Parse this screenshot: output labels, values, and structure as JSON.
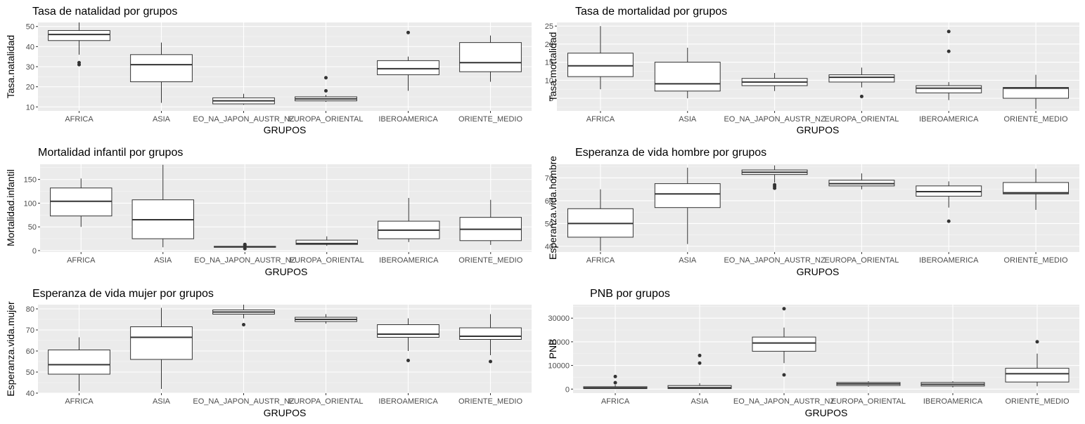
{
  "chart_data": [
    {
      "type": "boxplot",
      "title": "Tasa de natalidad por grupos",
      "xlabel": "GRUPOS",
      "ylabel": "Tasa.natalidad",
      "categories": [
        "AFRICA",
        "ASIA",
        "EO_NA_JAPON_AUSTR_NZ",
        "EUROPA_ORIENTAL",
        "IBEROAMERICA",
        "ORIENTE_MEDIO"
      ],
      "ylim": [
        8,
        52
      ],
      "yticks": [
        10,
        20,
        30,
        40,
        50
      ],
      "boxes": [
        {
          "whisker_low": 36,
          "q1": 43,
          "median": 46,
          "q3": 48,
          "whisker_high": 52,
          "outliers": [
            31,
            32
          ]
        },
        {
          "whisker_low": 12,
          "q1": 22.5,
          "median": 31,
          "q3": 36,
          "whisker_high": 42,
          "outliers": []
        },
        {
          "whisker_low": 11,
          "q1": 11.5,
          "median": 13,
          "q3": 14.5,
          "whisker_high": 16.5,
          "outliers": []
        },
        {
          "whisker_low": 12.5,
          "q1": 13,
          "median": 14,
          "q3": 15,
          "whisker_high": 16,
          "outliers": [
            18,
            24.5
          ]
        },
        {
          "whisker_low": 18,
          "q1": 26,
          "median": 29,
          "q3": 33,
          "whisker_high": 35,
          "outliers": [
            47
          ]
        },
        {
          "whisker_low": 22.5,
          "q1": 27.5,
          "median": 32,
          "q3": 42,
          "whisker_high": 45.5,
          "outliers": []
        }
      ]
    },
    {
      "type": "boxplot",
      "title": "Tasa de mortalidad por grupos",
      "xlabel": "GRUPOS",
      "ylabel": "Tasa.mortalidad",
      "categories": [
        "AFRICA",
        "ASIA",
        "EO_NA_JAPON_AUSTR_NZ",
        "EUROPA_ORIENTAL",
        "IBEROAMERICA",
        "ORIENTE_MEDIO"
      ],
      "ylim": [
        1.5,
        26
      ],
      "yticks": [
        5,
        10,
        15,
        20,
        25
      ],
      "boxes": [
        {
          "whisker_low": 7.5,
          "q1": 11,
          "median": 14,
          "q3": 17.5,
          "whisker_high": 25,
          "outliers": []
        },
        {
          "whisker_low": 5,
          "q1": 7,
          "median": 9,
          "q3": 15,
          "whisker_high": 19,
          "outliers": []
        },
        {
          "whisker_low": 7,
          "q1": 8.5,
          "median": 9.5,
          "q3": 10.5,
          "whisker_high": 12,
          "outliers": []
        },
        {
          "whisker_low": 8,
          "q1": 9.5,
          "median": 10.8,
          "q3": 11.5,
          "whisker_high": 13.5,
          "outliers": [
            5.5
          ]
        },
        {
          "whisker_low": 4.5,
          "q1": 6.5,
          "median": 7.8,
          "q3": 8.5,
          "whisker_high": 9.5,
          "outliers": [
            18,
            23.5
          ]
        },
        {
          "whisker_low": 2,
          "q1": 5,
          "median": 7.8,
          "q3": 8,
          "whisker_high": 11.5,
          "outliers": []
        }
      ]
    },
    {
      "type": "boxplot",
      "title": "Mortalidad infantil por grupos",
      "xlabel": "GRUPOS",
      "ylabel": "Mortalidad.infantil",
      "categories": [
        "AFRICA",
        "ASIA",
        "EO_NA_JAPON_AUSTR_NZ",
        "EUROPA_ORIENTAL",
        "IBEROAMERICA",
        "ORIENTE_MEDIO"
      ],
      "ylim": [
        -3,
        182
      ],
      "yticks": [
        0,
        50,
        100,
        150
      ],
      "boxes": [
        {
          "whisker_low": 50,
          "q1": 73,
          "median": 104,
          "q3": 132,
          "whisker_high": 152,
          "outliers": []
        },
        {
          "whisker_low": 7,
          "q1": 25,
          "median": 65,
          "q3": 107,
          "whisker_high": 181,
          "outliers": []
        },
        {
          "whisker_low": 5,
          "q1": 7,
          "median": 8,
          "q3": 9,
          "whisker_high": 10,
          "outliers": [
            4,
            11,
            13
          ]
        },
        {
          "whisker_low": 10,
          "q1": 13,
          "median": 15,
          "q3": 22,
          "whisker_high": 30,
          "outliers": []
        },
        {
          "whisker_low": 18,
          "q1": 25,
          "median": 43,
          "q3": 62,
          "whisker_high": 111,
          "outliers": []
        },
        {
          "whisker_low": 12,
          "q1": 21,
          "median": 45,
          "q3": 70,
          "whisker_high": 107,
          "outliers": []
        }
      ]
    },
    {
      "type": "boxplot",
      "title": "Esperanza de vida hombre por grupos",
      "xlabel": "GRUPOS",
      "ylabel": "Esperanza.vida.hombre",
      "categories": [
        "AFRICA",
        "ASIA",
        "EO_NA_JAPON_AUSTR_NZ",
        "EUROPA_ORIENTAL",
        "IBEROAMERICA",
        "ORIENTE_MEDIO"
      ],
      "ylim": [
        37.5,
        76
      ],
      "yticks": [
        40,
        50,
        60,
        70
      ],
      "boxes": [
        {
          "whisker_low": 38,
          "q1": 44,
          "median": 50,
          "q3": 56.5,
          "whisker_high": 65,
          "outliers": []
        },
        {
          "whisker_low": 41,
          "q1": 57,
          "median": 63,
          "q3": 67.5,
          "whisker_high": 74.5,
          "outliers": []
        },
        {
          "whisker_low": 68,
          "q1": 71.5,
          "median": 72.5,
          "q3": 73.5,
          "whisker_high": 75.5,
          "outliers": [
            65.5,
            66.3,
            67
          ]
        },
        {
          "whisker_low": 65,
          "q1": 66.5,
          "median": 67.5,
          "q3": 69,
          "whisker_high": 72,
          "outliers": []
        },
        {
          "whisker_low": 57,
          "q1": 62,
          "median": 64,
          "q3": 66.5,
          "whisker_high": 68.5,
          "outliers": [
            51
          ]
        },
        {
          "whisker_low": 56,
          "q1": 63,
          "median": 63.5,
          "q3": 68,
          "whisker_high": 74,
          "outliers": []
        }
      ]
    },
    {
      "type": "boxplot",
      "title": "Esperanza de vida mujer por grupos",
      "xlabel": "GRUPOS",
      "ylabel": "Esperanza.vida.mujer",
      "categories": [
        "AFRICA",
        "ASIA",
        "EO_NA_JAPON_AUSTR_NZ",
        "EUROPA_ORIENTAL",
        "IBEROAMERICA",
        "ORIENTE_MEDIO"
      ],
      "ylim": [
        40,
        82
      ],
      "yticks": [
        40,
        50,
        60,
        70,
        80
      ],
      "boxes": [
        {
          "whisker_low": 41,
          "q1": 49,
          "median": 53.5,
          "q3": 60.5,
          "whisker_high": 66.5,
          "outliers": []
        },
        {
          "whisker_low": 42,
          "q1": 56,
          "median": 66.5,
          "q3": 71.5,
          "whisker_high": 80.5,
          "outliers": []
        },
        {
          "whisker_low": 75.5,
          "q1": 77.5,
          "median": 78.5,
          "q3": 79.5,
          "whisker_high": 82,
          "outliers": [
            72.5
          ]
        },
        {
          "whisker_low": 73,
          "q1": 74,
          "median": 75,
          "q3": 76,
          "whisker_high": 77.5,
          "outliers": []
        },
        {
          "whisker_low": 60,
          "q1": 66.5,
          "median": 68,
          "q3": 72.5,
          "whisker_high": 75.5,
          "outliers": [
            55.5
          ]
        },
        {
          "whisker_low": 58,
          "q1": 65.5,
          "median": 67,
          "q3": 71,
          "whisker_high": 77.5,
          "outliers": [
            55
          ]
        }
      ]
    },
    {
      "type": "boxplot",
      "title": "PNB por grupos",
      "xlabel": "GRUPOS",
      "ylabel": "PNB",
      "categories": [
        "AFRICA",
        "ASIA",
        "EO_NA_JAPON_AUSTR_NZ",
        "EUROPA_ORIENTAL",
        "IBEROAMERICA",
        "ORIENTE_MEDIO"
      ],
      "ylim": [
        -1700,
        35700
      ],
      "yticks": [
        0,
        10000,
        20000,
        30000
      ],
      "boxes": [
        {
          "whisker_low": 100,
          "q1": 200,
          "median": 500,
          "q3": 1000,
          "whisker_high": 1800,
          "outliers": [
            2700,
            5300
          ]
        },
        {
          "whisker_low": 100,
          "q1": 200,
          "median": 600,
          "q3": 1500,
          "whisker_high": 2500,
          "outliers": [
            11000,
            14200
          ]
        },
        {
          "whisker_low": 11000,
          "q1": 16000,
          "median": 19500,
          "q3": 22000,
          "whisker_high": 26000,
          "outliers": [
            6000,
            34000
          ]
        },
        {
          "whisker_low": 1000,
          "q1": 1500,
          "median": 2200,
          "q3": 2800,
          "whisker_high": 3300,
          "outliers": []
        },
        {
          "whisker_low": 700,
          "q1": 1300,
          "median": 2000,
          "q3": 2800,
          "whisker_high": 3300,
          "outliers": []
        },
        {
          "whisker_low": 1200,
          "q1": 3000,
          "median": 6500,
          "q3": 8800,
          "whisker_high": 15000,
          "outliers": [
            20000
          ]
        }
      ]
    }
  ]
}
